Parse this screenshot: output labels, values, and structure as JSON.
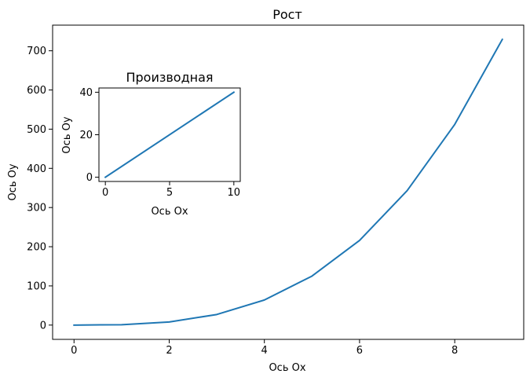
{
  "chart_data": [
    {
      "type": "line",
      "title": "Рост",
      "xlabel": "Ось Ox",
      "ylabel": "Ось Oy",
      "xlim": [
        -0.45,
        9.45
      ],
      "ylim": [
        -36.45,
        765.45
      ],
      "x_ticks": [
        "0",
        "2",
        "4",
        "6",
        "8"
      ],
      "y_ticks": [
        "0",
        "100",
        "200",
        "300",
        "400",
        "500",
        "600",
        "700"
      ],
      "grid": false,
      "color": "#1f77b4",
      "series": [
        {
          "x": [
            0,
            1,
            2,
            3,
            4,
            5,
            6,
            7,
            8,
            9
          ],
          "y": [
            0,
            1,
            8,
            27,
            64,
            125,
            216,
            343,
            512,
            729
          ]
        }
      ]
    },
    {
      "type": "line",
      "title": "Производная",
      "xlabel": "Ось Ox",
      "ylabel": "Ось Oy",
      "xlim": [
        -0.5,
        10.5
      ],
      "ylim": [
        -2,
        42
      ],
      "x_ticks": [
        "0",
        "5",
        "10"
      ],
      "y_ticks": [
        "0",
        "20",
        "40"
      ],
      "grid": false,
      "color": "#1f77b4",
      "series": [
        {
          "x": [
            0,
            10
          ],
          "y": [
            0,
            40
          ]
        }
      ]
    }
  ]
}
